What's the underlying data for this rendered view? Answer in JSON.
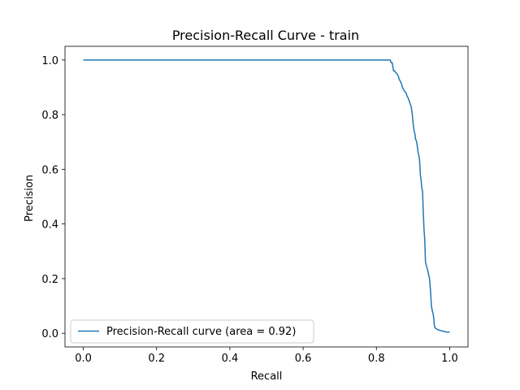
{
  "chart_data": {
    "type": "line",
    "title": "Precision-Recall Curve - train",
    "xlabel": "Recall",
    "ylabel": "Precision",
    "xlim": [
      -0.05,
      1.05
    ],
    "ylim": [
      -0.05,
      1.05
    ],
    "xticks": [
      0.0,
      0.2,
      0.4,
      0.6,
      0.8,
      1.0
    ],
    "yticks": [
      0.0,
      0.2,
      0.4,
      0.6,
      0.8,
      1.0
    ],
    "xtick_labels": [
      "0.0",
      "0.2",
      "0.4",
      "0.6",
      "0.8",
      "1.0"
    ],
    "ytick_labels": [
      "0.0",
      "0.2",
      "0.4",
      "0.6",
      "0.8",
      "1.0"
    ],
    "grid": false,
    "legend_position": "lower-left",
    "series": [
      {
        "name": "Precision-Recall curve (area = 0.92)",
        "color": "#1f77b4",
        "x": [
          0.0,
          0.838,
          0.84,
          0.843,
          0.847,
          0.85,
          0.852,
          0.856,
          0.86,
          0.862,
          0.866,
          0.868,
          0.871,
          0.875,
          0.877,
          0.881,
          0.883,
          0.887,
          0.892,
          0.895,
          0.898,
          0.9,
          0.903,
          0.905,
          0.907,
          0.91,
          0.912,
          0.914,
          0.916,
          0.918,
          0.92,
          0.922,
          0.924,
          0.926,
          0.928,
          0.93,
          0.932,
          0.934,
          0.936,
          0.938,
          0.94,
          0.945,
          0.948,
          0.95,
          0.953,
          0.955,
          0.957,
          0.958,
          0.96,
          0.965,
          0.97,
          0.975,
          0.98,
          0.99,
          1.0
        ],
        "y": [
          1.0,
          1.0,
          0.99,
          0.99,
          0.96,
          0.96,
          0.955,
          0.95,
          0.94,
          0.93,
          0.92,
          0.915,
          0.9,
          0.89,
          0.885,
          0.88,
          0.87,
          0.86,
          0.84,
          0.83,
          0.8,
          0.77,
          0.74,
          0.73,
          0.71,
          0.7,
          0.68,
          0.66,
          0.65,
          0.63,
          0.58,
          0.56,
          0.53,
          0.52,
          0.44,
          0.38,
          0.34,
          0.26,
          0.25,
          0.24,
          0.23,
          0.2,
          0.15,
          0.1,
          0.08,
          0.07,
          0.05,
          0.03,
          0.02,
          0.015,
          0.012,
          0.01,
          0.008,
          0.005,
          0.004
        ]
      }
    ]
  }
}
